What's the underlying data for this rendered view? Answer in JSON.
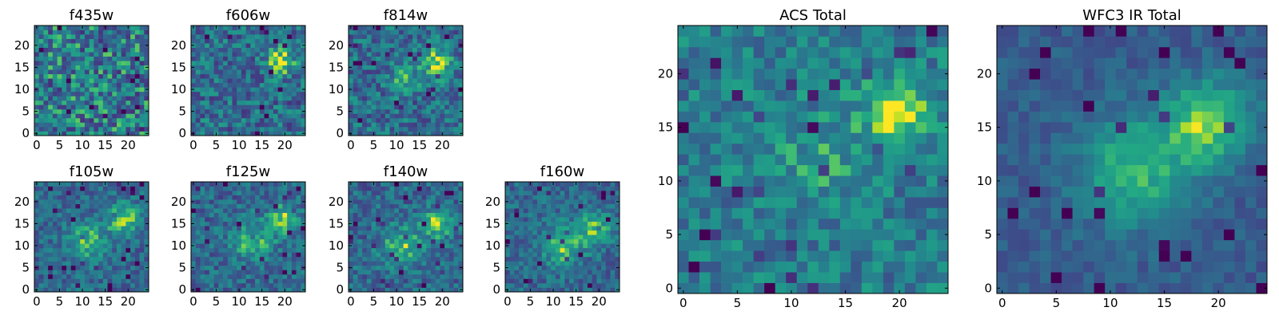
{
  "chart_data": [
    {
      "type": "heatmap",
      "title": "f435w",
      "colormap": "viridis",
      "grid": false,
      "xlim": [
        0,
        24
      ],
      "ylim": [
        0,
        24
      ],
      "xticks": [
        "0",
        "5",
        "10",
        "15",
        "20"
      ],
      "yticks": [
        "0",
        "5",
        "10",
        "15",
        "20"
      ],
      "size": 25,
      "noise": 0.34,
      "base": 0.52,
      "blobs": []
    },
    {
      "type": "heatmap",
      "title": "f606w",
      "colormap": "viridis",
      "grid": false,
      "xlim": [
        0,
        24
      ],
      "ylim": [
        0,
        24
      ],
      "xticks": [
        "0",
        "5",
        "10",
        "15",
        "20"
      ],
      "yticks": [
        "0",
        "5",
        "10",
        "15",
        "20"
      ],
      "size": 25,
      "noise": 0.26,
      "base": 0.45,
      "blobs": [
        {
          "x": 19,
          "y": 16.5,
          "sigma": 2.0,
          "amp": 0.55
        }
      ]
    },
    {
      "type": "heatmap",
      "title": "f814w",
      "colormap": "viridis",
      "grid": false,
      "xlim": [
        0,
        24
      ],
      "ylim": [
        0,
        24
      ],
      "xticks": [
        "0",
        "5",
        "10",
        "15",
        "20"
      ],
      "yticks": [
        "0",
        "5",
        "10",
        "15",
        "20"
      ],
      "size": 25,
      "noise": 0.24,
      "base": 0.45,
      "blobs": [
        {
          "x": 19,
          "y": 16,
          "sigma": 2.2,
          "amp": 0.5
        },
        {
          "x": 12,
          "y": 12,
          "sigma": 2.2,
          "amp": 0.3
        }
      ]
    },
    {
      "type": "heatmap",
      "title": "f105w",
      "colormap": "viridis",
      "grid": false,
      "xlim": [
        0,
        24
      ],
      "ylim": [
        0,
        24
      ],
      "xticks": [
        "0",
        "5",
        "10",
        "15",
        "20"
      ],
      "yticks": [
        "0",
        "5",
        "10",
        "15",
        "20"
      ],
      "size": 25,
      "noise": 0.18,
      "base": 0.42,
      "blobs": [
        {
          "x": 19,
          "y": 16,
          "sigma": 2.4,
          "amp": 0.5
        },
        {
          "x": 11,
          "y": 11,
          "sigma": 3.0,
          "amp": 0.38
        }
      ]
    },
    {
      "type": "heatmap",
      "title": "f125w",
      "colormap": "viridis",
      "grid": false,
      "xlim": [
        0,
        24
      ],
      "ylim": [
        0,
        24
      ],
      "xticks": [
        "0",
        "5",
        "10",
        "15",
        "20"
      ],
      "yticks": [
        "0",
        "5",
        "10",
        "15",
        "20"
      ],
      "size": 25,
      "noise": 0.2,
      "base": 0.42,
      "blobs": [
        {
          "x": 20,
          "y": 16,
          "sigma": 2.4,
          "amp": 0.45
        },
        {
          "x": 13,
          "y": 11,
          "sigma": 3.2,
          "amp": 0.38
        }
      ]
    },
    {
      "type": "heatmap",
      "title": "f140w",
      "colormap": "viridis",
      "grid": false,
      "xlim": [
        0,
        24
      ],
      "ylim": [
        0,
        24
      ],
      "xticks": [
        "0",
        "5",
        "10",
        "15",
        "20"
      ],
      "yticks": [
        "0",
        "5",
        "10",
        "15",
        "20"
      ],
      "size": 25,
      "noise": 0.2,
      "base": 0.42,
      "blobs": [
        {
          "x": 19,
          "y": 15,
          "sigma": 2.4,
          "amp": 0.45
        },
        {
          "x": 11,
          "y": 10,
          "sigma": 3.0,
          "amp": 0.4
        }
      ]
    },
    {
      "type": "heatmap",
      "title": "f160w",
      "colormap": "viridis",
      "grid": false,
      "xlim": [
        0,
        24
      ],
      "ylim": [
        0,
        24
      ],
      "xticks": [
        "0",
        "5",
        "10",
        "15",
        "20"
      ],
      "yticks": [
        "0",
        "5",
        "10",
        "15",
        "20"
      ],
      "size": 25,
      "noise": 0.18,
      "base": 0.42,
      "blobs": [
        {
          "x": 19,
          "y": 14,
          "sigma": 2.6,
          "amp": 0.4
        },
        {
          "x": 12,
          "y": 10,
          "sigma": 3.2,
          "amp": 0.42
        }
      ]
    },
    {
      "type": "heatmap",
      "title": "ACS Total",
      "colormap": "viridis",
      "grid": false,
      "xlim": [
        0,
        24
      ],
      "ylim": [
        0,
        24
      ],
      "xticks": [
        "0",
        "5",
        "10",
        "15",
        "20"
      ],
      "yticks": [
        "0",
        "5",
        "10",
        "15",
        "20"
      ],
      "size": 25,
      "noise": 0.2,
      "base": 0.52,
      "blobs": [
        {
          "x": 20,
          "y": 16.5,
          "sigma": 2.2,
          "amp": 0.5
        },
        {
          "x": 13,
          "y": 12,
          "sigma": 3.5,
          "amp": 0.15
        }
      ]
    },
    {
      "type": "heatmap",
      "title": "WFC3 IR Total",
      "colormap": "viridis",
      "grid": false,
      "xlim": [
        0,
        24
      ],
      "ylim": [
        0,
        24
      ],
      "xticks": [
        "0",
        "5",
        "10",
        "15",
        "20"
      ],
      "yticks": [
        "0",
        "5",
        "10",
        "15",
        "20"
      ],
      "size": 25,
      "noise": 0.1,
      "base": 0.36,
      "blobs": [
        {
          "x": 19,
          "y": 15.5,
          "sigma": 2.8,
          "amp": 0.55
        },
        {
          "x": 12,
          "y": 11,
          "sigma": 3.6,
          "amp": 0.45
        }
      ]
    }
  ]
}
